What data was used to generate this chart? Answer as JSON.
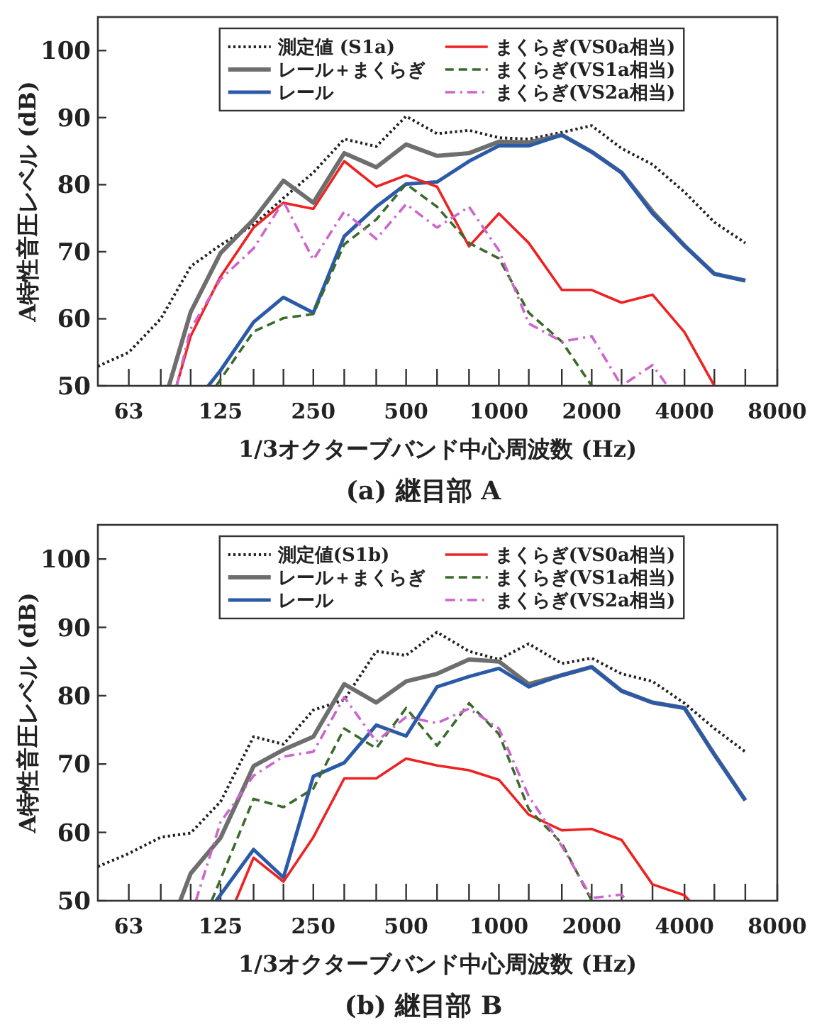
{
  "chart_data": [
    {
      "type": "line",
      "title": "(a) 継目部 A",
      "xlabel": "1/3オクターブバンド中心周波数 (Hz)",
      "ylabel": "A特性音圧レベル (dB)",
      "log": "x",
      "legend": "top",
      "xlim": [
        50,
        8000
      ],
      "ylim": [
        50,
        105
      ],
      "yticks": [
        50,
        60,
        70,
        80,
        90,
        100
      ],
      "xticks": [
        63,
        {
          "value": 80,
          "label": null
        },
        {
          "value": 100,
          "label": null
        },
        125,
        {
          "value": 160,
          "label": null
        },
        {
          "value": 200,
          "label": null
        },
        250,
        {
          "value": 315,
          "label": null
        },
        {
          "value": 400,
          "label": null
        },
        500,
        {
          "value": 630,
          "label": null
        },
        {
          "value": 800,
          "label": null
        },
        1000,
        {
          "value": 1250,
          "label": null
        },
        {
          "value": 1600,
          "label": null
        },
        2000,
        {
          "value": 2500,
          "label": null
        },
        {
          "value": 3150,
          "label": null
        },
        4000,
        {
          "value": 5000,
          "label": null
        },
        {
          "value": 6300,
          "label": null
        },
        8000
      ],
      "series": [
        {
          "name": "測定値 (S1a)",
          "color": "#222222",
          "line_style": "dotted",
          "x": [
            50,
            63,
            80,
            100,
            125,
            160,
            200,
            250,
            315,
            400,
            500,
            630,
            800,
            1000,
            1250,
            1600,
            2000,
            2500,
            3150,
            4000,
            5000,
            6300
          ],
          "values": [
            52.9,
            55,
            60,
            67.8,
            71,
            74,
            78,
            81.8,
            86.8,
            85.7,
            90.2,
            87.6,
            88.1,
            87,
            86.8,
            87.8,
            88.8,
            85.4,
            83,
            78.9,
            74.4,
            71.3
          ]
        },
        {
          "name": "レール＋まくらぎ",
          "color": "#6e6e6e",
          "x": [
            85,
            100,
            125,
            160,
            200,
            250,
            315,
            400,
            500,
            630,
            800,
            1000,
            1250,
            1600,
            2000,
            2500,
            3150,
            4000,
            5000,
            6300
          ],
          "values": [
            50,
            61,
            69.8,
            74.8,
            80.6,
            77.3,
            84.7,
            82.6,
            86,
            84.3,
            84.7,
            86.4,
            86.3,
            87.4,
            84.9,
            81.8,
            76,
            70.9,
            66.7,
            65.7
          ]
        },
        {
          "name": "レール",
          "color": "#2b5aa8",
          "x": [
            114,
            125,
            160,
            200,
            250,
            315,
            400,
            500,
            630,
            800,
            1000,
            1250,
            1600,
            2000,
            2500,
            3150,
            4000,
            5000,
            6300
          ],
          "values": [
            50,
            52.3,
            59.5,
            63.2,
            60.9,
            72.3,
            76.7,
            80.1,
            80.4,
            83.5,
            85.8,
            85.8,
            87.4,
            84.9,
            81.8,
            75.7,
            70.9,
            66.7,
            65.7
          ]
        },
        {
          "name": "まくらぎ(VS0a相当)",
          "color": "#ee2222",
          "x": [
            90,
            100,
            125,
            160,
            200,
            250,
            315,
            400,
            500,
            630,
            800,
            1000,
            1250,
            1600,
            2000,
            2500,
            3150,
            4000,
            5000
          ],
          "values": [
            50,
            57.4,
            66.3,
            73.6,
            77.3,
            76.4,
            83.5,
            79.7,
            81.4,
            79.7,
            70.8,
            75.7,
            71.3,
            64.3,
            64.3,
            62.4,
            63.6,
            58,
            50
          ]
        },
        {
          "name": "まくらぎ(VS1a相当)",
          "color": "#3a6b2a",
          "line_style": "dashed",
          "x": [
            121,
            160,
            200,
            250,
            315,
            400,
            500,
            630,
            800,
            1000,
            1250,
            1600,
            2000
          ],
          "values": [
            50,
            58.1,
            60.1,
            60.7,
            71.1,
            74.8,
            80.1,
            76.7,
            71.3,
            69,
            60.9,
            56.6,
            50
          ]
        },
        {
          "name": "まくらぎ(VS2a相当)",
          "color": "#cc66cc",
          "line_style": "dashdot",
          "x": [
            90,
            100,
            125,
            160,
            200,
            250,
            315,
            400,
            500,
            630,
            800,
            1000,
            1250,
            1600,
            2000,
            2500,
            3150,
            3520
          ],
          "values": [
            50,
            58.5,
            65.9,
            70.5,
            77.5,
            68.8,
            76,
            71.9,
            77.1,
            73.6,
            76.7,
            70.2,
            59.3,
            56.6,
            57.4,
            50,
            53.1,
            50
          ]
        }
      ]
    },
    {
      "type": "line",
      "title": "(b) 継目部 B",
      "xlabel": "1/3オクターブバンド中心周波数 (Hz)",
      "ylabel": "A特性音圧レベル (dB)",
      "log": "x",
      "legend": "top",
      "xlim": [
        50,
        8000
      ],
      "ylim": [
        50,
        105
      ],
      "yticks": [
        50,
        60,
        70,
        80,
        90,
        100
      ],
      "xticks": [
        63,
        {
          "value": 80,
          "label": null
        },
        {
          "value": 100,
          "label": null
        },
        125,
        {
          "value": 160,
          "label": null
        },
        {
          "value": 200,
          "label": null
        },
        250,
        {
          "value": 315,
          "label": null
        },
        {
          "value": 400,
          "label": null
        },
        500,
        {
          "value": 630,
          "label": null
        },
        {
          "value": 800,
          "label": null
        },
        1000,
        {
          "value": 1250,
          "label": null
        },
        {
          "value": 1600,
          "label": null
        },
        2000,
        {
          "value": 2500,
          "label": null
        },
        {
          "value": 3150,
          "label": null
        },
        4000,
        {
          "value": 5000,
          "label": null
        },
        {
          "value": 6300,
          "label": null
        },
        8000
      ],
      "series": [
        {
          "name": "測定値(S1b)",
          "color": "#222222",
          "line_style": "dotted",
          "x": [
            50,
            63,
            80,
            100,
            125,
            160,
            200,
            250,
            315,
            400,
            500,
            630,
            800,
            1000,
            1250,
            1600,
            2000,
            2500,
            3150,
            4000,
            5000,
            6300
          ],
          "values": [
            55,
            56.9,
            59.3,
            59.9,
            64.5,
            74,
            72.9,
            77.9,
            79.4,
            86.5,
            85.9,
            89.3,
            86.5,
            85.3,
            87.6,
            84.7,
            85.5,
            83.2,
            82.1,
            78.9,
            75.2,
            71.8
          ]
        },
        {
          "name": "レール＋まくらぎ",
          "color": "#6e6e6e",
          "x": [
            92.5,
            100,
            125,
            160,
            200,
            250,
            315,
            400,
            500,
            630,
            800,
            1000,
            1250,
            1600,
            2000,
            2500,
            3150,
            4000,
            5000,
            6300
          ],
          "values": [
            50,
            54,
            59.2,
            69.7,
            72.1,
            74,
            81.7,
            79,
            82.1,
            83.2,
            85.3,
            85,
            81.7,
            83,
            84.2,
            80.7,
            79,
            78.2,
            71.4,
            64.7
          ]
        },
        {
          "name": "レール",
          "color": "#2b5aa8",
          "x": [
            121,
            160,
            200,
            250,
            315,
            400,
            500,
            630,
            800,
            1000,
            1250,
            1600,
            2000,
            2500,
            3150,
            4000,
            5000,
            6300
          ],
          "values": [
            50,
            57.5,
            53.4,
            68.2,
            70.2,
            75.7,
            74.1,
            81.3,
            82.8,
            84,
            81.3,
            83,
            84.2,
            80.7,
            79,
            78.2,
            71.4,
            64.7
          ]
        },
        {
          "name": "まくらぎ(VS0a相当)",
          "color": "#ee2222",
          "x": [
            140,
            160,
            200,
            250,
            315,
            400,
            500,
            630,
            800,
            1000,
            1250,
            1600,
            2000,
            2500,
            3150,
            4000,
            4150
          ],
          "values": [
            50,
            56.3,
            52.8,
            59.3,
            67.9,
            67.9,
            70.8,
            69.8,
            69.1,
            67.7,
            62.6,
            60.3,
            60.5,
            58.9,
            52.4,
            50.8,
            50
          ]
        },
        {
          "name": "まくらぎ(VS1a相当)",
          "color": "#3a6b2a",
          "line_style": "dashed",
          "x": [
            117,
            160,
            200,
            250,
            315,
            400,
            500,
            630,
            800,
            1000,
            1250,
            1600,
            2000
          ],
          "values": [
            50,
            64.9,
            63.7,
            66.4,
            75.2,
            72.3,
            78.2,
            72.7,
            78.9,
            74.4,
            63.4,
            58.4,
            50
          ]
        },
        {
          "name": "まくらぎ(VS2a相当)",
          "color": "#cc66cc",
          "line_style": "dashdot",
          "x": [
            104,
            125,
            160,
            200,
            250,
            315,
            400,
            500,
            630,
            800,
            1000,
            1250,
            1600,
            2000,
            2500,
            2600
          ],
          "values": [
            50,
            61.5,
            68.3,
            71.1,
            71.8,
            79.8,
            73.3,
            76.9,
            76,
            78.1,
            75.2,
            65.3,
            58,
            50.4,
            50.9,
            50
          ]
        }
      ]
    }
  ]
}
